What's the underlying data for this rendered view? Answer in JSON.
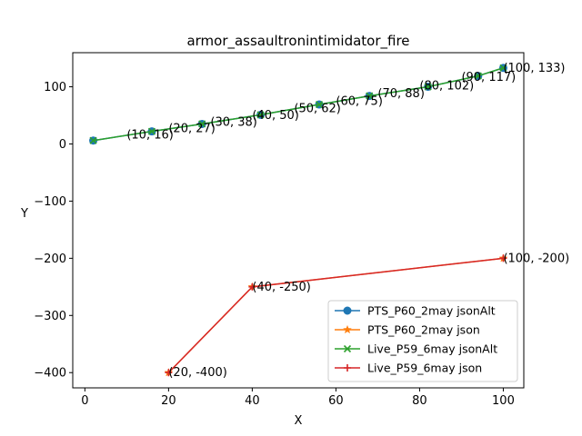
{
  "chart_data": {
    "type": "line",
    "title": "armor_assaultronintimidator_fire",
    "xlabel": "X",
    "ylabel": "Y",
    "xlim": [
      -2.9,
      104.9
    ],
    "ylim": [
      -426.65,
      159.65
    ],
    "xticks": [
      0,
      20,
      40,
      60,
      80,
      100
    ],
    "yticks": [
      -400,
      -300,
      -200,
      -100,
      0,
      100
    ],
    "grid": false,
    "legend_position": "lower right",
    "series": [
      {
        "name": "PTS_P60_2may jsonAlt",
        "color": "#1f77b4",
        "marker": "circle",
        "points": [
          [
            2,
            6
          ],
          [
            16,
            22
          ],
          [
            28,
            35
          ],
          [
            42,
            51
          ],
          [
            56,
            69
          ],
          [
            68,
            84
          ],
          [
            82,
            100
          ],
          [
            94,
            119
          ],
          [
            100,
            133
          ]
        ]
      },
      {
        "name": "PTS_P60_2may json",
        "color": "#ff7f0e",
        "marker": "star",
        "points": [
          [
            20,
            -400
          ],
          [
            40,
            -250
          ],
          [
            100,
            -200
          ]
        ]
      },
      {
        "name": "Live_P59_6may jsonAlt",
        "color": "#2ca02c",
        "marker": "x",
        "points": [
          [
            2,
            6
          ],
          [
            16,
            22
          ],
          [
            28,
            35
          ],
          [
            42,
            51
          ],
          [
            56,
            69
          ],
          [
            68,
            84
          ],
          [
            82,
            100
          ],
          [
            94,
            119
          ],
          [
            100,
            133
          ]
        ]
      },
      {
        "name": "Live_P59_6may json",
        "color": "#d62728",
        "marker": "plus",
        "points": [
          [
            20,
            -400
          ],
          [
            40,
            -250
          ],
          [
            100,
            -200
          ]
        ]
      }
    ],
    "annotations": [
      {
        "text": "(10, 16)",
        "x": 10,
        "y": 16
      },
      {
        "text": "(20, 27)",
        "x": 20,
        "y": 27
      },
      {
        "text": "(30, 38)",
        "x": 30,
        "y": 38
      },
      {
        "text": "(40, 50)",
        "x": 40,
        "y": 50
      },
      {
        "text": "(50, 62)",
        "x": 50,
        "y": 62
      },
      {
        "text": "(60, 75)",
        "x": 60,
        "y": 75
      },
      {
        "text": "(70, 88)",
        "x": 70,
        "y": 88
      },
      {
        "text": "(80, 102)",
        "x": 80,
        "y": 102
      },
      {
        "text": "(90, 117)",
        "x": 90,
        "y": 117
      },
      {
        "text": "(100, 133)",
        "x": 100,
        "y": 133
      },
      {
        "text": "(20, -400)",
        "x": 20,
        "y": -400
      },
      {
        "text": "(40, -250)",
        "x": 40,
        "y": -250
      },
      {
        "text": "(100, -200)",
        "x": 100,
        "y": -200
      }
    ]
  }
}
